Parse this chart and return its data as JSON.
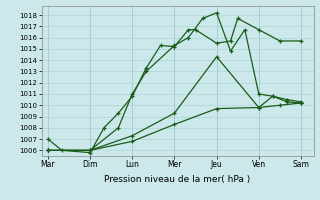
{
  "xlabel": "Pression niveau de la mer( hPa )",
  "background_color": "#cce8ea",
  "grid_color": "#aad4d8",
  "line_color": "#1a5c1a",
  "x_labels": [
    "Mar",
    "Dim",
    "Lun",
    "Mer",
    "Jeu",
    "Ven",
    "Sam"
  ],
  "x_ticks": [
    0,
    1,
    2,
    3,
    4,
    5,
    6
  ],
  "ylim": [
    1005.5,
    1018.8
  ],
  "yticks": [
    1006,
    1007,
    1008,
    1009,
    1010,
    1011,
    1012,
    1013,
    1014,
    1015,
    1016,
    1017,
    1018
  ],
  "series1_x": [
    0,
    0.33,
    1.0,
    1.33,
    1.67,
    2.0,
    2.33,
    2.67,
    3.0,
    3.33,
    3.5,
    4.0,
    4.33,
    4.5,
    5.0,
    5.5,
    6.0
  ],
  "series1_y": [
    1007.0,
    1006.0,
    1005.8,
    1008.0,
    1009.3,
    1010.8,
    1013.3,
    1015.3,
    1015.2,
    1016.7,
    1016.7,
    1015.5,
    1015.7,
    1017.7,
    1016.7,
    1015.7,
    1015.7
  ],
  "series2_x": [
    0,
    1.0,
    1.67,
    2.0,
    2.33,
    3.0,
    3.33,
    3.67,
    4.0,
    4.33,
    4.67,
    5.0,
    5.33,
    5.67,
    6.0
  ],
  "series2_y": [
    1006.0,
    1006.0,
    1008.0,
    1011.0,
    1013.0,
    1015.3,
    1016.0,
    1017.7,
    1018.2,
    1014.8,
    1016.7,
    1011.0,
    1010.8,
    1010.3,
    1010.2
  ],
  "series3_x": [
    0,
    1.0,
    2.0,
    3.0,
    4.0,
    5.0,
    5.5,
    6.0
  ],
  "series3_y": [
    1006.0,
    1006.0,
    1006.8,
    1008.3,
    1009.7,
    1009.8,
    1010.0,
    1010.2
  ],
  "series4_x": [
    0,
    1.0,
    2.0,
    3.0,
    4.0,
    5.0,
    5.33,
    5.67,
    6.0
  ],
  "series4_y": [
    1006.0,
    1006.0,
    1007.3,
    1009.3,
    1014.3,
    1009.8,
    1010.8,
    1010.5,
    1010.3
  ]
}
